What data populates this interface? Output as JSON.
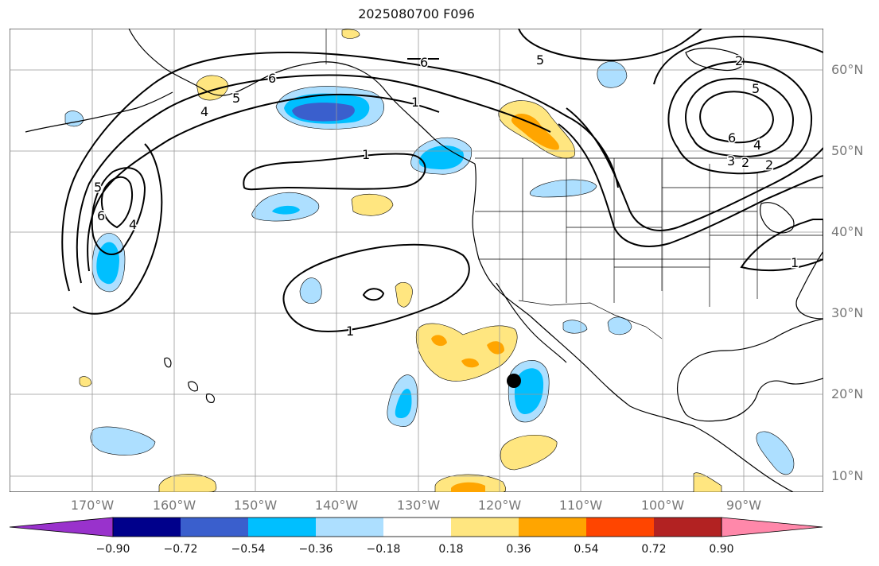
{
  "title": "2025080700 F096",
  "lat_labels": [
    "60°N",
    "50°N",
    "40°N",
    "30°N",
    "20°N",
    "10°N"
  ],
  "lon_labels": [
    "170°W",
    "160°W",
    "150°W",
    "140°W",
    "130°W",
    "120°W",
    "110°W",
    "100°W",
    "90°W"
  ],
  "colorbar": {
    "labels": [
      "−0.90",
      "−0.72",
      "−0.54",
      "−0.36",
      "−0.18",
      "0.18",
      "0.36",
      "0.54",
      "0.72",
      "0.90"
    ],
    "colors": [
      "#9932CC",
      "#00008B",
      "#3A5FCD",
      "#00BFFF",
      "#ADDFFF",
      "#FFFFFF",
      "#FFE680",
      "#FFA500",
      "#FF4500",
      "#B22222",
      "#FF88AA"
    ]
  },
  "contour_labels": [
    "6",
    "5",
    "4",
    "1",
    "6",
    "5",
    "2",
    "5",
    "6",
    "4",
    "3",
    "2",
    "1",
    "1",
    "1",
    "6",
    "4",
    "5",
    "2"
  ],
  "colors": {
    "neg_light": "#ADDFFF",
    "neg_mid": "#00BFFF",
    "neg_dark": "#3A5FCD",
    "pos_light": "#FFE680",
    "pos_mid": "#FFA500"
  }
}
